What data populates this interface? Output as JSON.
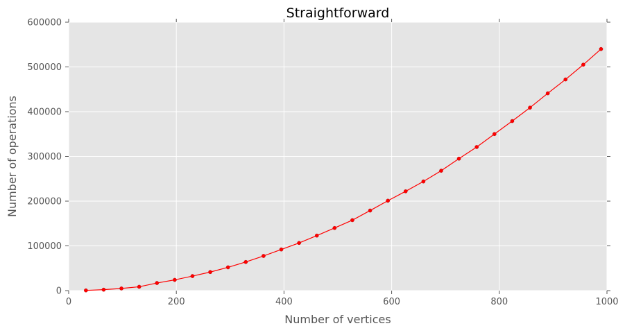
{
  "chart_data": {
    "type": "line",
    "title": "Straightforward",
    "xlabel": "Number of vertices",
    "ylabel": "Number of operations",
    "xlim": [
      0,
      1000
    ],
    "ylim": [
      0,
      600000
    ],
    "x_ticks": [
      0,
      200,
      400,
      600,
      800,
      1000
    ],
    "y_ticks": [
      0,
      100000,
      200000,
      300000,
      400000,
      500000,
      600000
    ],
    "x_tick_labels": [
      "0",
      "200",
      "400",
      "600",
      "800",
      "1000"
    ],
    "y_tick_labels": [
      "0",
      "100000",
      "200000",
      "300000",
      "400000",
      "500000",
      "600000"
    ],
    "grid": true,
    "legend": "none",
    "series": [
      {
        "color": "#ff0000",
        "marker": "circle",
        "x": [
          32,
          65,
          98,
          131,
          164,
          197,
          230,
          263,
          296,
          329,
          362,
          395,
          428,
          461,
          494,
          527,
          560,
          593,
          626,
          659,
          692,
          725,
          758,
          791,
          824,
          857,
          890,
          923,
          956,
          989
        ],
        "y": [
          500,
          2100,
          4800,
          8600,
          17000,
          24000,
          32500,
          41500,
          52000,
          64000,
          77500,
          92000,
          106500,
          123000,
          140000,
          157500,
          179000,
          201000,
          222000,
          244000,
          268000,
          295000,
          321000,
          350000,
          379000,
          409000,
          441000,
          472000,
          505000,
          540000
        ]
      }
    ]
  },
  "colors": {
    "plot_background": "#e5e5e5",
    "grid": "#ffffff",
    "line": "#ff0000",
    "tick_text": "#555555"
  }
}
